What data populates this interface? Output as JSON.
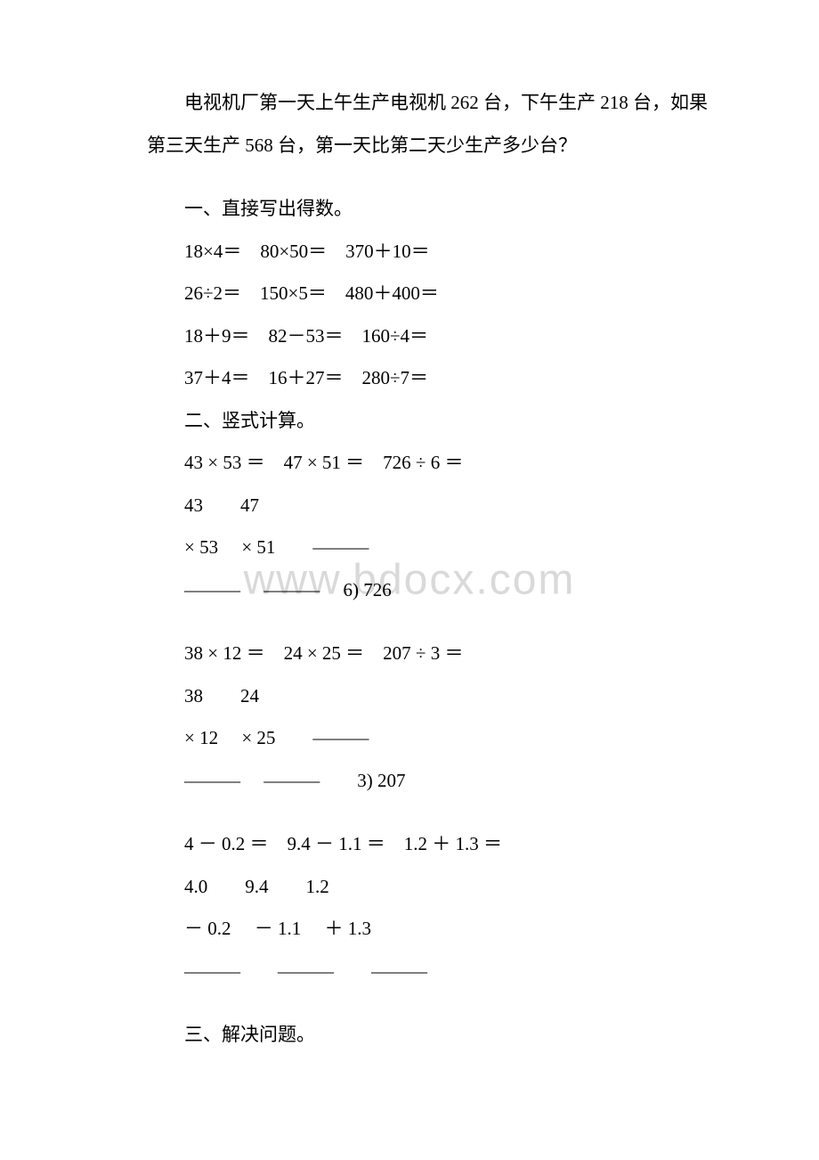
{
  "watermark": "www.bdocx.com",
  "word_problem": {
    "line1": "电视机厂第一天上午生产电视机 262 台，下午生产 218 台，如果",
    "line2": "第三天生产 568 台，第一天比第二天少生产多少台？"
  },
  "section1": {
    "title": "一、直接写出得数。",
    "row1": "18×4＝　80×50＝　370＋10＝",
    "row2": "26÷2＝　150×5＝　480＋400＝",
    "row3": "18＋9＝　82－53＝　160÷4＝",
    "row4": "37＋4＝　16＋27＝　280÷7＝"
  },
  "section2": {
    "title": "二、竖式计算。",
    "group1": {
      "header": "43 × 53 ＝　47 × 51 ＝　726 ÷ 6 ＝",
      "row1": "  43　　47",
      "row2": "× 53　 × 51　　———",
      "row3": "———　 ———　 6) 726"
    },
    "group2": {
      "header": "38 × 12 ＝　24 × 25 ＝　207 ÷ 3 ＝",
      "row1": "  38　　24",
      "row2": "× 12　 × 25　　———",
      "row3": "———　 ———　　3) 207"
    },
    "group3": {
      "header": "4 － 0.2 ＝　9.4 － 1.1 ＝　1.2 ＋ 1.3 ＝",
      "row1": "  4.0　　9.4　　1.2",
      "row2": "－ 0.2　 － 1.1　 ＋ 1.3",
      "row3": "———　　———　　———"
    }
  },
  "section3": {
    "title": "三、解决问题。"
  }
}
